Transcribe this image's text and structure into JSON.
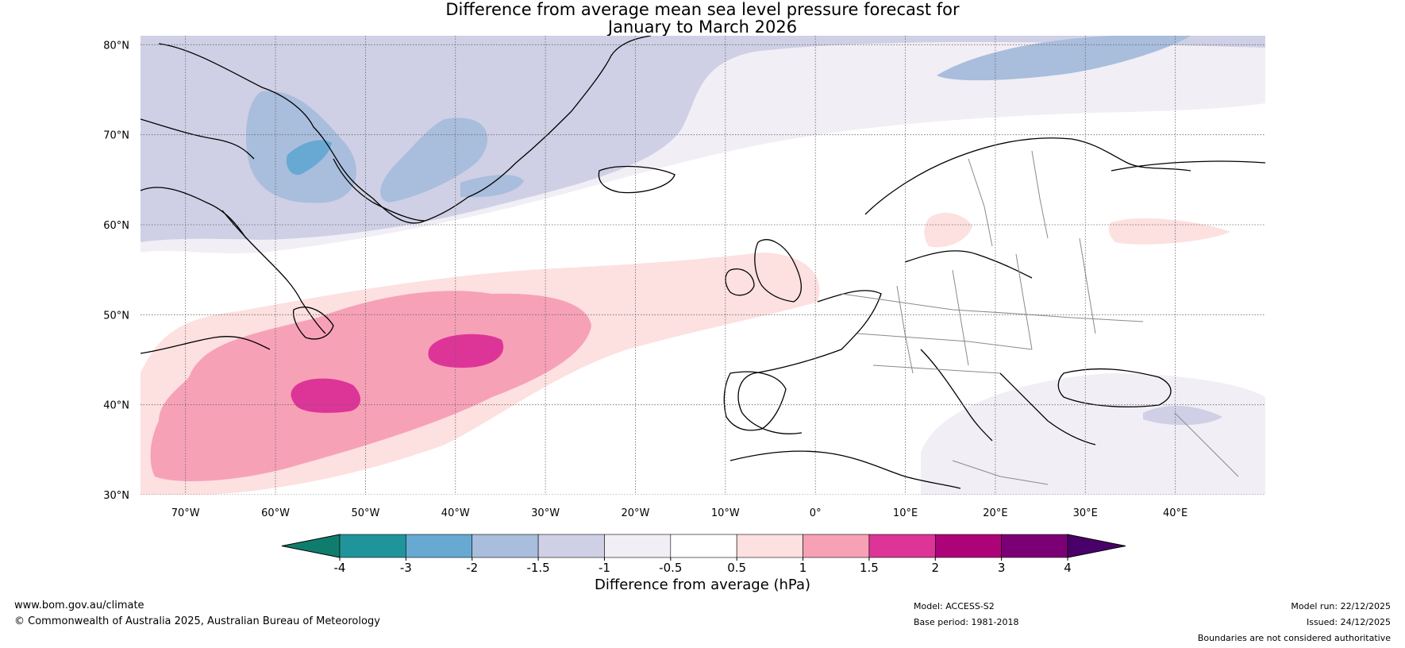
{
  "title_line1": "Difference from average mean sea level pressure forecast for",
  "title_line2": "January to March 2026",
  "map": {
    "lon_range": [
      -75,
      50
    ],
    "lat_range": [
      30,
      81
    ],
    "lat_ticks": [
      {
        "value": 30,
        "label": "30°N"
      },
      {
        "value": 40,
        "label": "40°N"
      },
      {
        "value": 50,
        "label": "50°N"
      },
      {
        "value": 60,
        "label": "60°N"
      },
      {
        "value": 70,
        "label": "70°N"
      },
      {
        "value": 80,
        "label": "80°N"
      }
    ],
    "lon_ticks": [
      {
        "value": -70,
        "label": "70°W"
      },
      {
        "value": -60,
        "label": "60°W"
      },
      {
        "value": -50,
        "label": "50°W"
      },
      {
        "value": -40,
        "label": "40°W"
      },
      {
        "value": -30,
        "label": "30°W"
      },
      {
        "value": -20,
        "label": "20°W"
      },
      {
        "value": -10,
        "label": "10°W"
      },
      {
        "value": 0,
        "label": "0°"
      },
      {
        "value": 10,
        "label": "10°E"
      },
      {
        "value": 20,
        "label": "20°E"
      },
      {
        "value": 30,
        "label": "30°E"
      },
      {
        "value": 40,
        "label": "40°E"
      }
    ]
  },
  "colorbar": {
    "title": "Difference from average (hPa)",
    "bins": [
      {
        "color": "#0f7d6e"
      },
      {
        "color": "#20949b"
      },
      {
        "color": "#67a9d2"
      },
      {
        "color": "#a9bddc"
      },
      {
        "color": "#cfd0e5"
      },
      {
        "color": "#f1eef5"
      },
      {
        "color": "#ffffff"
      },
      {
        "color": "#fde0e0"
      },
      {
        "color": "#f7a1b7"
      },
      {
        "color": "#dd3597"
      },
      {
        "color": "#ad0379"
      },
      {
        "color": "#7b0076"
      },
      {
        "color": "#4a006a"
      }
    ],
    "tick_labels": [
      "-4",
      "-3",
      "-2",
      "-1.5",
      "-1",
      "-0.5",
      "0.5",
      "1",
      "1.5",
      "2",
      "3",
      "4"
    ]
  },
  "footer": {
    "website": "www.bom.gov.au/climate",
    "copyright": "© Commonwealth of Australia 2025, Australian Bureau of Meteorology",
    "model": "Model: ACCESS-S2",
    "base_period": "Base period: 1981-2018",
    "model_run": "Model run: 22/12/2025",
    "issued": "Issued: 24/12/2025",
    "disclaimer": "Boundaries are not considered authoritative"
  }
}
